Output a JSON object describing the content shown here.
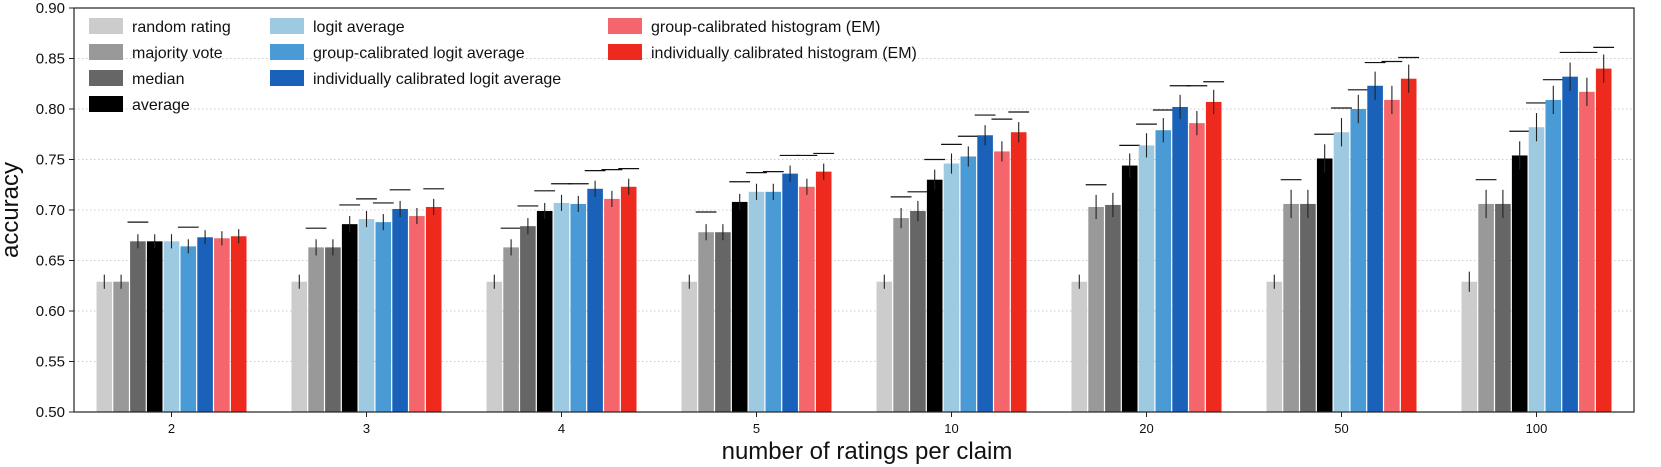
{
  "chart_data": {
    "type": "bar",
    "title": "",
    "xlabel": "number of ratings per claim",
    "ylabel": "accuracy",
    "ylim": [
      0.5,
      0.9
    ],
    "yticks": [
      "0.50",
      "0.55",
      "0.60",
      "0.65",
      "0.70",
      "0.75",
      "0.80",
      "0.85",
      "0.90"
    ],
    "grid": "horizontal dotted",
    "categories": [
      "2",
      "3",
      "4",
      "5",
      "10",
      "20",
      "50",
      "100"
    ],
    "series": [
      {
        "name": "random rating",
        "color": "#cccccc",
        "values": [
          0.629,
          0.629,
          0.629,
          0.629,
          0.629,
          0.629,
          0.629,
          0.629
        ],
        "errors": [
          0.007,
          0.007,
          0.007,
          0.007,
          0.007,
          0.007,
          0.007,
          0.01
        ],
        "best_marker": [
          null,
          null,
          null,
          null,
          null,
          null,
          null,
          null
        ]
      },
      {
        "name": "majority vote",
        "color": "#999999",
        "values": [
          0.629,
          0.663,
          0.663,
          0.678,
          0.692,
          0.703,
          0.706,
          0.706
        ],
        "errors": [
          0.007,
          0.008,
          0.008,
          0.008,
          0.01,
          0.012,
          0.014,
          0.014
        ],
        "best_marker": [
          null,
          0.682,
          0.682,
          0.698,
          0.713,
          0.725,
          0.73,
          0.73
        ]
      },
      {
        "name": "median",
        "color": "#666666",
        "values": [
          0.669,
          0.663,
          0.684,
          0.678,
          0.699,
          0.705,
          0.706,
          0.706
        ],
        "errors": [
          0.007,
          0.008,
          0.008,
          0.008,
          0.01,
          0.012,
          0.014,
          0.014
        ],
        "best_marker": [
          0.688,
          null,
          0.704,
          null,
          0.718,
          null,
          null,
          null
        ]
      },
      {
        "name": "average",
        "color": "#000000",
        "values": [
          0.669,
          0.686,
          0.699,
          0.708,
          0.73,
          0.744,
          0.751,
          0.754
        ],
        "errors": [
          0.007,
          0.008,
          0.008,
          0.008,
          0.01,
          0.012,
          0.014,
          0.014
        ],
        "best_marker": [
          null,
          0.705,
          0.719,
          0.728,
          0.75,
          0.764,
          0.775,
          0.778
        ]
      },
      {
        "name": "logit average",
        "color": "#9ecae1",
        "values": [
          0.669,
          0.691,
          0.707,
          0.718,
          0.746,
          0.764,
          0.777,
          0.782
        ],
        "errors": [
          0.007,
          0.008,
          0.008,
          0.008,
          0.01,
          0.012,
          0.014,
          0.014
        ],
        "best_marker": [
          null,
          0.711,
          0.726,
          0.737,
          0.765,
          0.785,
          0.801,
          0.806
        ]
      },
      {
        "name": "group-calibrated logit average",
        "color": "#4a9ad6",
        "values": [
          0.664,
          0.688,
          0.706,
          0.718,
          0.753,
          0.779,
          0.8,
          0.809
        ],
        "errors": [
          0.007,
          0.008,
          0.008,
          0.008,
          0.01,
          0.012,
          0.014,
          0.014
        ],
        "best_marker": [
          0.683,
          0.707,
          0.726,
          0.738,
          0.773,
          0.799,
          0.819,
          0.829
        ]
      },
      {
        "name": "individually calibrated logit average",
        "color": "#1a62b9",
        "values": [
          0.673,
          0.701,
          0.721,
          0.736,
          0.774,
          0.802,
          0.823,
          0.832
        ],
        "errors": [
          0.007,
          0.008,
          0.008,
          0.008,
          0.01,
          0.012,
          0.014,
          0.014
        ],
        "best_marker": [
          null,
          0.72,
          0.739,
          0.754,
          0.794,
          0.823,
          0.846,
          0.856
        ]
      },
      {
        "name": "group-calibrated histogram (EM)",
        "color": "#f5666c",
        "values": [
          0.672,
          0.694,
          0.711,
          0.723,
          0.758,
          0.786,
          0.809,
          0.817
        ],
        "errors": [
          0.007,
          0.008,
          0.008,
          0.008,
          0.01,
          0.012,
          0.014,
          0.014
        ],
        "best_marker": [
          null,
          null,
          0.74,
          0.754,
          0.79,
          0.823,
          0.847,
          0.856
        ]
      },
      {
        "name": "individually calibrated histogram (EM)",
        "color": "#ee2a1f",
        "values": [
          0.674,
          0.703,
          0.723,
          0.738,
          0.777,
          0.807,
          0.83,
          0.84
        ],
        "errors": [
          0.007,
          0.008,
          0.008,
          0.008,
          0.01,
          0.012,
          0.014,
          0.014
        ],
        "best_marker": [
          null,
          0.721,
          0.741,
          0.756,
          0.797,
          0.827,
          0.851,
          0.861
        ]
      }
    ],
    "legend_position": "top-left, three columns"
  }
}
